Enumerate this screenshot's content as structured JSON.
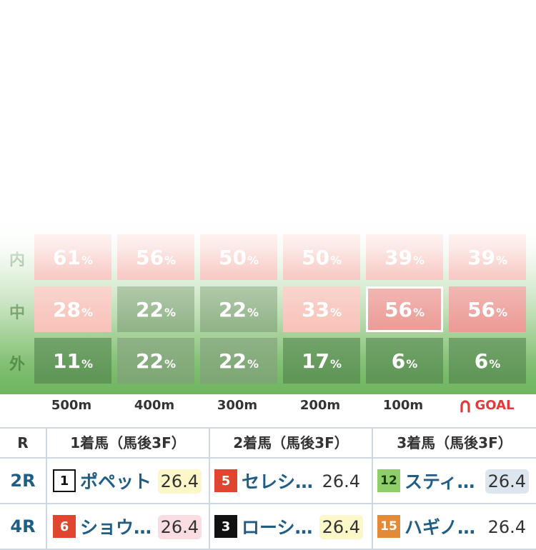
{
  "heatmap": {
    "row_labels": [
      "内",
      "中",
      "外"
    ],
    "distances": [
      "500m",
      "400m",
      "300m",
      "200m",
      "100m",
      "GOAL"
    ],
    "pct_suffix": "%",
    "rows": [
      [
        "61",
        "56",
        "50",
        "50",
        "39",
        "39"
      ],
      [
        "28",
        "22",
        "22",
        "33",
        "56",
        "56"
      ],
      [
        "11",
        "22",
        "22",
        "17",
        "6",
        "6"
      ]
    ],
    "cell_colors": [
      [
        "#f2a29a",
        "#f2a29a",
        "#f2a29a",
        "#f2a29a",
        "#f2a29a",
        "#f2a29a"
      ],
      [
        "#f6b9ae",
        "#7fa775",
        "#7fa775",
        "#f6b9ae",
        "#e98b85",
        "#e98b85"
      ],
      [
        "#5f9756",
        "#7fa775",
        "#7fa775",
        "#5f9756",
        "#5f9756",
        "#5f9756"
      ]
    ],
    "selected_cell": "中-100m",
    "goal_icon": "horseshoe-icon"
  },
  "results": {
    "headers": [
      "R",
      "1着馬（馬後3F）",
      "2着馬（馬後3F）",
      "3着馬（馬後3F）"
    ],
    "rows": [
      {
        "race": "2R",
        "entries": [
          {
            "num": "1",
            "name": "ポペット",
            "time": "26.4",
            "badge_bg": "#ffffff",
            "badge_fg": "#111111",
            "time_bg": "#fbf7c8"
          },
          {
            "num": "5",
            "name": "セレシ…",
            "time": "26.4",
            "badge_bg": "#e0452f",
            "badge_fg": "#ffffff",
            "time_bg": "#ffffff"
          },
          {
            "num": "12",
            "name": "スティ…",
            "time": "26.4",
            "badge_bg": "#8fcf6a",
            "badge_fg": "#1d3d10",
            "time_bg": "#dde6ef"
          }
        ]
      },
      {
        "race": "4R",
        "entries": [
          {
            "num": "6",
            "name": "ショウ…",
            "time": "26.4",
            "badge_bg": "#e0452f",
            "badge_fg": "#ffffff",
            "time_bg": "#f9dde3"
          },
          {
            "num": "3",
            "name": "ローシ…",
            "time": "26.4",
            "badge_bg": "#111111",
            "badge_fg": "#ffffff",
            "time_bg": "#fbf7c8"
          },
          {
            "num": "15",
            "name": "ハギノ…",
            "time": "26.4",
            "badge_bg": "#e08a3a",
            "badge_fg": "#ffffff",
            "time_bg": "#ffffff"
          }
        ]
      }
    ]
  }
}
